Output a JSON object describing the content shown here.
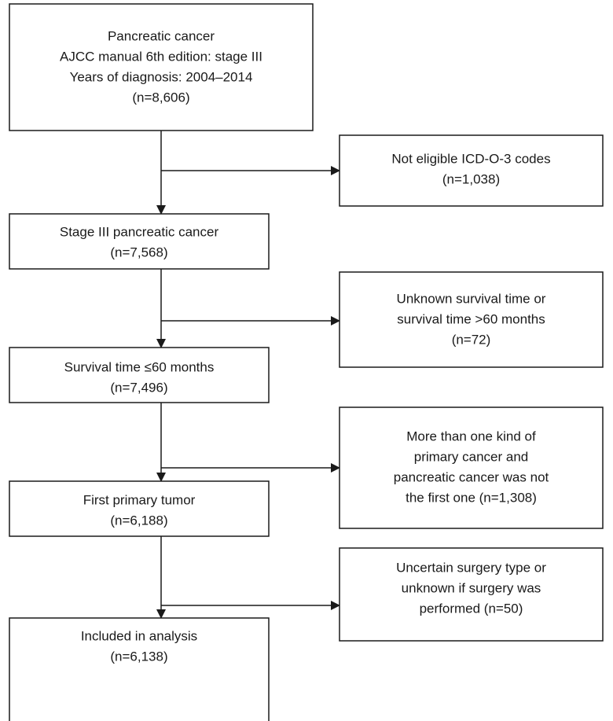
{
  "main_boxes": [
    {
      "lines": [
        "Pancreatic cancer",
        "AJCC manual 6th edition: stage III",
        "Years of diagnosis: 2004–2014",
        "(n=8,606)"
      ]
    },
    {
      "lines": [
        "Stage III pancreatic cancer",
        "(n=7,568)"
      ]
    },
    {
      "lines": [
        "Survival time ≤60 months",
        "(n=7,496)"
      ]
    },
    {
      "lines": [
        "First primary tumor",
        "(n=6,188)"
      ]
    },
    {
      "lines": [
        "Included in analysis",
        "(n=6,138)"
      ]
    }
  ],
  "excluded_boxes": [
    {
      "lines": [
        "Not eligible ICD-O-3 codes",
        "(n=1,038)"
      ]
    },
    {
      "lines": [
        "Unknown survival time or",
        "survival time >60 months",
        "(n=72)"
      ]
    },
    {
      "lines": [
        "More than one kind of",
        "primary cancer and",
        "pancreatic cancer was not",
        "the first one (n=1,308)"
      ]
    },
    {
      "lines": [
        "Uncertain surgery type or",
        "unknown if surgery was",
        "performed (n=50)"
      ]
    }
  ]
}
